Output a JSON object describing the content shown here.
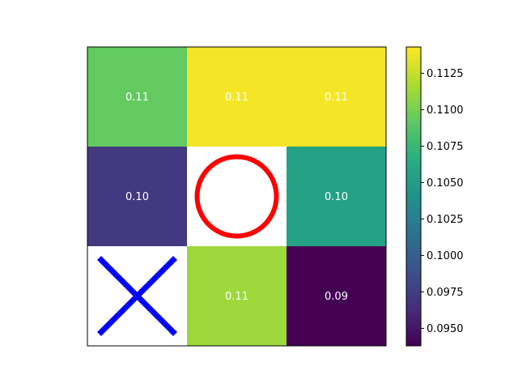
{
  "chart_data": {
    "type": "heatmap",
    "title": "",
    "xlabel": "",
    "ylabel": "",
    "colormap": "viridis",
    "grid": false,
    "rows": [
      [
        {
          "value": 0.1093,
          "label": "0.11"
        },
        {
          "value": 0.114,
          "label": "0.11"
        },
        {
          "value": 0.114,
          "label": "0.11"
        }
      ],
      [
        {
          "value": 0.0972,
          "label": "0.10"
        },
        {
          "value": null,
          "marker": "circle",
          "marker_color": "#ff0000"
        },
        {
          "value": 0.1055,
          "label": "0.10"
        }
      ],
      [
        {
          "value": null,
          "marker": "x",
          "marker_color": "#0000ff"
        },
        {
          "value": 0.1112,
          "label": "0.11"
        },
        {
          "value": 0.0938,
          "label": "0.09"
        }
      ]
    ],
    "colorbar": {
      "vmin": 0.0938,
      "vmax": 0.1143,
      "ticks": [
        {
          "value": 0.095,
          "label": "0.0950"
        },
        {
          "value": 0.0975,
          "label": "0.0975"
        },
        {
          "value": 0.1,
          "label": "0.1000"
        },
        {
          "value": 0.1025,
          "label": "0.1025"
        },
        {
          "value": 0.105,
          "label": "0.1050"
        },
        {
          "value": 0.1075,
          "label": "0.1075"
        },
        {
          "value": 0.11,
          "label": "0.1100"
        },
        {
          "value": 0.1125,
          "label": "0.1125"
        }
      ]
    }
  }
}
